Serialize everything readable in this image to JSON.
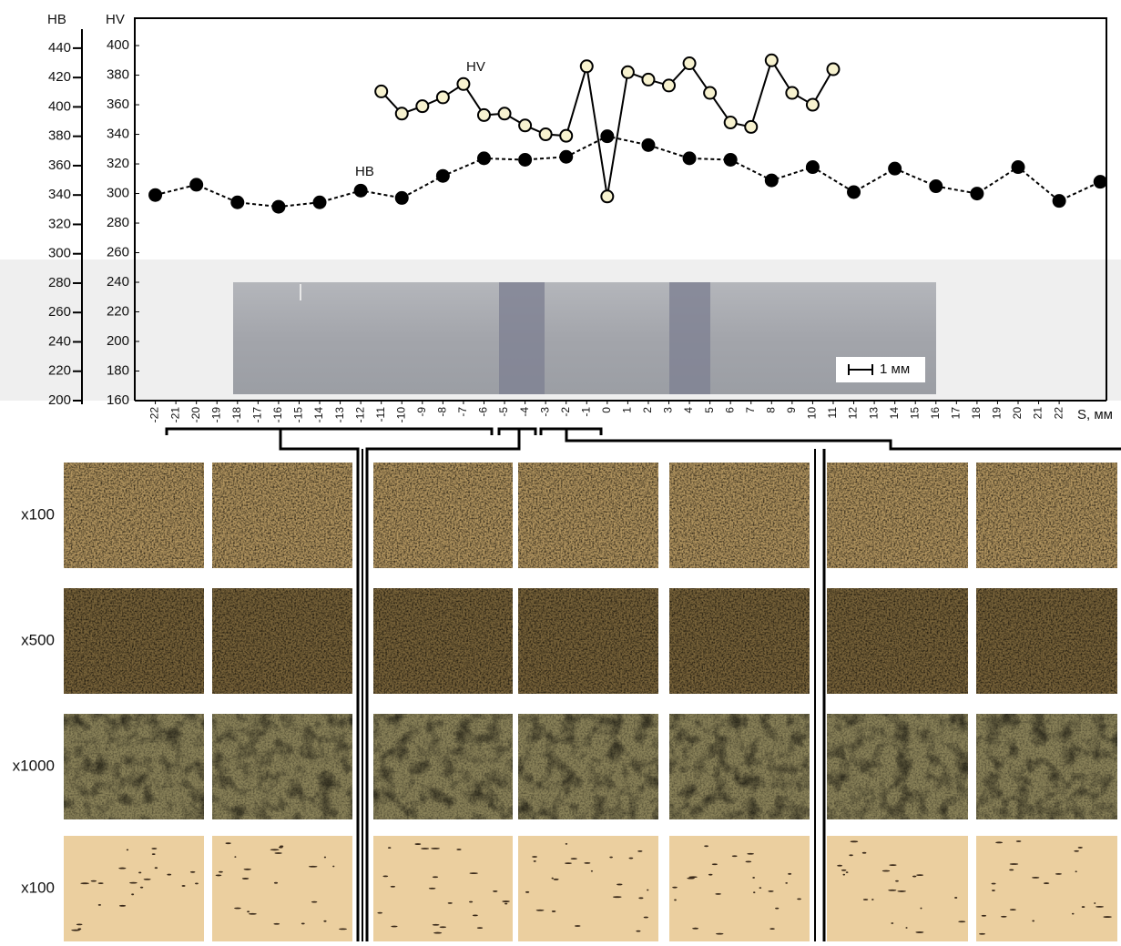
{
  "chart_data": {
    "type": "line",
    "x_label": "S, мм",
    "y_label": "HB",
    "y2_label": "HV",
    "xlim": [
      -23,
      24.3
    ],
    "xticks": [
      -22,
      -21,
      -20,
      -19,
      -18,
      -17,
      -16,
      -15,
      -14,
      -13,
      -12,
      -11,
      -10,
      -9,
      -8,
      -7,
      -6,
      -5,
      -4,
      -3,
      -2,
      -1,
      0,
      1,
      2,
      3,
      4,
      5,
      6,
      7,
      8,
      9,
      10,
      11,
      12,
      13,
      14,
      15,
      16,
      17,
      18,
      19,
      20,
      21,
      22
    ],
    "ylim": [
      200,
      460.4
    ],
    "yticks": [
      200,
      220,
      240,
      260,
      280,
      300,
      320,
      340,
      360,
      380,
      400,
      420,
      440
    ],
    "y2lim": [
      160,
      418.5
    ],
    "y2ticks": [
      160,
      180,
      200,
      220,
      240,
      260,
      280,
      300,
      320,
      340,
      360,
      380,
      400
    ],
    "series": [
      {
        "name": "HB",
        "color": "#000000",
        "marker_fill": "#000000",
        "line_style": "dashed",
        "x": [
          -22,
          -20,
          -18,
          -16,
          -14,
          -12,
          -10,
          -8,
          -6,
          -4,
          -2,
          0,
          2,
          4,
          6,
          8,
          10,
          12,
          14,
          16,
          18,
          20,
          22,
          24
        ],
        "values": [
          340,
          347,
          335,
          332,
          335,
          343,
          338,
          353,
          365,
          364,
          366,
          380,
          374,
          365,
          364,
          350,
          359,
          342,
          358,
          346,
          341,
          359,
          336,
          349
        ]
      },
      {
        "name": "HV",
        "axis": "y2",
        "color": "#000000",
        "marker_fill": "#f7f2cf",
        "line_style": "solid",
        "x": [
          -11,
          -10,
          -9,
          -8,
          -7,
          -6,
          -5,
          -4,
          -3,
          -2,
          -1,
          0,
          1,
          2,
          3,
          4,
          5,
          6,
          7,
          8,
          9,
          10,
          11
        ],
        "values": [
          369,
          354,
          359,
          365,
          374,
          353,
          354,
          346,
          340,
          339,
          386,
          298,
          382,
          377,
          373,
          388,
          368,
          348,
          345,
          390,
          368,
          360,
          384
        ]
      }
    ],
    "scale_bar": "1 мм"
  },
  "micrographs": {
    "row_labels": [
      "x100",
      "x500",
      "x1000",
      "x100"
    ]
  }
}
